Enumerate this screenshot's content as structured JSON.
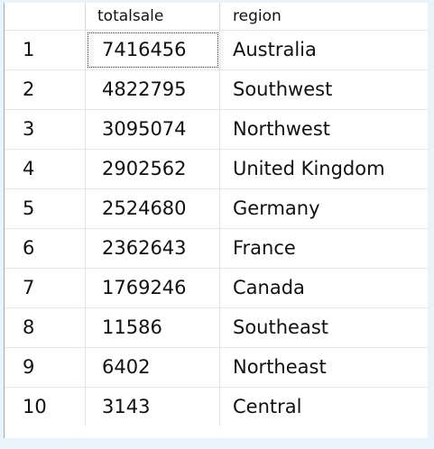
{
  "grid": {
    "columns": [
      "",
      "totalsale",
      "region"
    ],
    "rows": [
      {
        "num": "1",
        "totalsale": "7416456",
        "region": "Australia"
      },
      {
        "num": "2",
        "totalsale": "4822795",
        "region": "Southwest"
      },
      {
        "num": "3",
        "totalsale": "3095074",
        "region": "Northwest"
      },
      {
        "num": "4",
        "totalsale": "2902562",
        "region": "United Kingdom"
      },
      {
        "num": "5",
        "totalsale": "2524680",
        "region": "Germany"
      },
      {
        "num": "6",
        "totalsale": "2362643",
        "region": "France"
      },
      {
        "num": "7",
        "totalsale": "1769246",
        "region": "Canada"
      },
      {
        "num": "8",
        "totalsale": "11586",
        "region": "Southeast"
      },
      {
        "num": "9",
        "totalsale": "6402",
        "region": "Northeast"
      },
      {
        "num": "10",
        "totalsale": "3143",
        "region": "Central"
      }
    ]
  }
}
